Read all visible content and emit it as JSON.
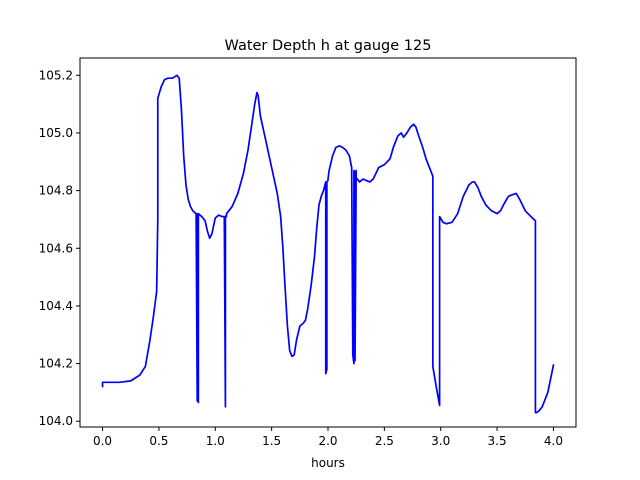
{
  "chart_data": {
    "type": "line",
    "title": "Water Depth h at gauge 125",
    "xlabel": "hours",
    "ylabel": "",
    "xlim": [
      -0.2,
      4.2
    ],
    "ylim": [
      103.98,
      105.26
    ],
    "xticks": [
      0.0,
      0.5,
      1.0,
      1.5,
      2.0,
      2.5,
      3.0,
      3.5,
      4.0
    ],
    "xtick_labels": [
      "0.0",
      "0.5",
      "1.0",
      "1.5",
      "2.0",
      "2.5",
      "3.0",
      "3.5",
      "4.0"
    ],
    "yticks": [
      104.0,
      104.2,
      104.4,
      104.6,
      104.8,
      105.0,
      105.2
    ],
    "ytick_labels": [
      "104.0",
      "104.2",
      "104.4",
      "104.6",
      "104.8",
      "105.0",
      "105.2"
    ],
    "grid": false,
    "series": [
      {
        "color": "#0000ff",
        "x": [
          0.0,
          0.0,
          0.05,
          0.15,
          0.25,
          0.33,
          0.38,
          0.42,
          0.45,
          0.48,
          0.49,
          0.49,
          0.52,
          0.55,
          0.58,
          0.62,
          0.66,
          0.68,
          0.7,
          0.72,
          0.74,
          0.76,
          0.78,
          0.8,
          0.83,
          0.84,
          0.84,
          0.85,
          0.85,
          0.85,
          0.88,
          0.91,
          0.93,
          0.95,
          0.97,
          1.0,
          1.03,
          1.06,
          1.08,
          1.09,
          1.09,
          1.1,
          1.1,
          1.1,
          1.15,
          1.2,
          1.25,
          1.29,
          1.32,
          1.35,
          1.37,
          1.38,
          1.4,
          1.45,
          1.5,
          1.55,
          1.58,
          1.6,
          1.62,
          1.64,
          1.66,
          1.68,
          1.7,
          1.72,
          1.75,
          1.78,
          1.8,
          1.82,
          1.85,
          1.88,
          1.9,
          1.92,
          1.94,
          1.96,
          1.98,
          1.98,
          1.99,
          1.99,
          2.0,
          2.0,
          2.01,
          2.04,
          2.07,
          2.1,
          2.13,
          2.16,
          2.19,
          2.21,
          2.22,
          2.23,
          2.23,
          2.24,
          2.24,
          2.25,
          2.25,
          2.28,
          2.31,
          2.34,
          2.37,
          2.4,
          2.45,
          2.5,
          2.55,
          2.58,
          2.62,
          2.65,
          2.67,
          2.7,
          2.73,
          2.76,
          2.78,
          2.8,
          2.84,
          2.87,
          2.9,
          2.93,
          2.93,
          2.96,
          2.99,
          2.99,
          3.02,
          3.05,
          3.1,
          3.15,
          3.2,
          3.25,
          3.28,
          3.3,
          3.33,
          3.36,
          3.4,
          3.45,
          3.5,
          3.53,
          3.57,
          3.6,
          3.63,
          3.67,
          3.7,
          3.75,
          3.8,
          3.84,
          3.84,
          3.85,
          3.87,
          3.9,
          3.95,
          4.0
        ],
        "y": [
          104.12,
          104.135,
          104.135,
          104.135,
          104.14,
          104.16,
          104.19,
          104.28,
          104.36,
          104.45,
          104.7,
          105.12,
          105.16,
          105.185,
          105.19,
          105.19,
          105.2,
          105.19,
          105.08,
          104.92,
          104.82,
          104.77,
          104.745,
          104.73,
          104.72,
          104.07,
          104.72,
          104.07,
          104.065,
          104.72,
          104.71,
          104.695,
          104.66,
          104.635,
          104.65,
          104.705,
          104.715,
          104.71,
          104.71,
          104.05,
          104.71,
          104.715,
          104.71,
          104.72,
          104.745,
          104.79,
          104.86,
          104.94,
          105.02,
          105.1,
          105.14,
          105.13,
          105.06,
          104.97,
          104.88,
          104.79,
          104.71,
          104.6,
          104.46,
          104.33,
          104.245,
          104.225,
          104.23,
          104.28,
          104.33,
          104.34,
          104.35,
          104.39,
          104.47,
          104.57,
          104.67,
          104.75,
          104.78,
          104.8,
          104.83,
          104.165,
          104.18,
          104.83,
          104.835,
          104.84,
          104.87,
          104.92,
          104.95,
          104.955,
          104.95,
          104.94,
          104.92,
          104.88,
          104.23,
          104.2,
          104.87,
          104.86,
          104.21,
          104.87,
          104.845,
          104.83,
          104.84,
          104.835,
          104.83,
          104.84,
          104.88,
          104.89,
          104.91,
          104.95,
          104.99,
          105.0,
          104.985,
          105.0,
          105.02,
          105.03,
          105.02,
          104.995,
          104.95,
          104.91,
          104.88,
          104.85,
          104.19,
          104.12,
          104.055,
          104.71,
          104.69,
          104.685,
          104.69,
          104.72,
          104.78,
          104.82,
          104.83,
          104.83,
          104.81,
          104.78,
          104.75,
          104.73,
          104.72,
          104.73,
          104.76,
          104.78,
          104.785,
          104.79,
          104.77,
          104.73,
          104.71,
          104.695,
          104.03,
          104.03,
          104.035,
          104.05,
          104.1,
          104.195
        ]
      }
    ]
  }
}
